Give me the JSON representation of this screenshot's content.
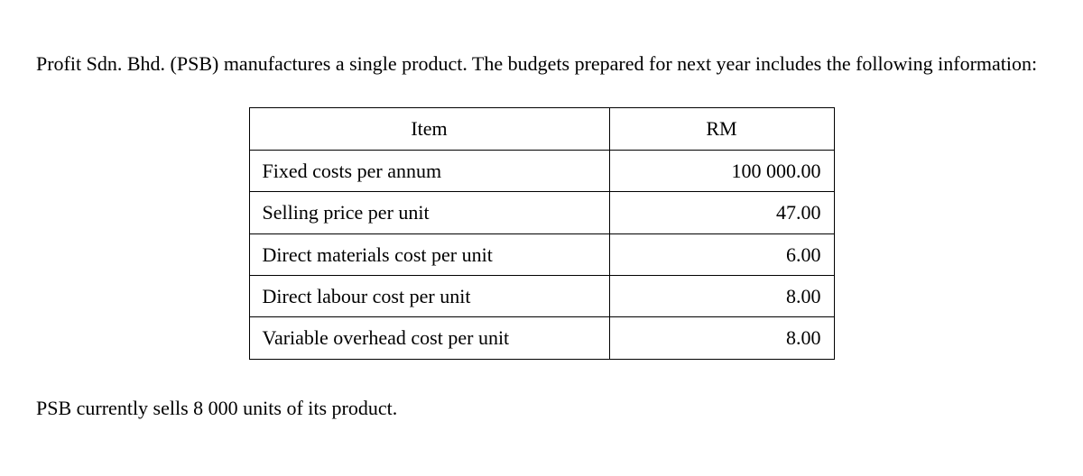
{
  "intro": "Profit Sdn. Bhd. (PSB) manufactures a single product. The budgets prepared for next year includes the following information:",
  "table": {
    "headers": {
      "item": "Item",
      "rm": "RM"
    },
    "rows": [
      {
        "item": "Fixed costs per annum",
        "rm": "100 000.00"
      },
      {
        "item": "Selling price per unit",
        "rm": "47.00"
      },
      {
        "item": "Direct materials cost per unit",
        "rm": "6.00"
      },
      {
        "item": "Direct labour cost per unit",
        "rm": "8.00"
      },
      {
        "item": "Variable overhead cost per unit",
        "rm": "8.00"
      }
    ]
  },
  "footer": "PSB currently sells 8 000 units of its product."
}
